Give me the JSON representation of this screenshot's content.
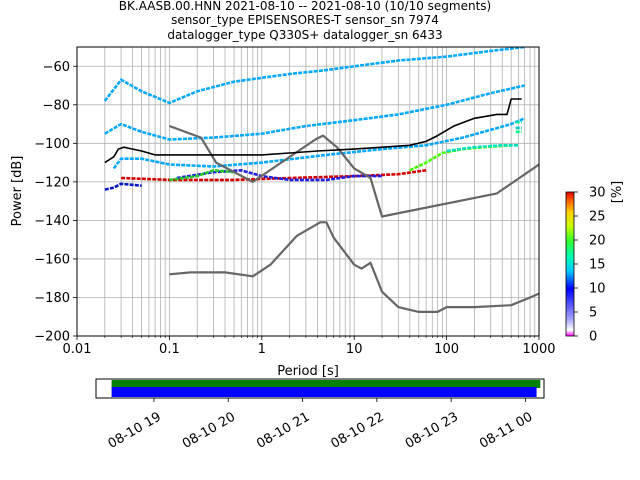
{
  "title_lines": [
    "BK.AASB.00.HNN   2021-08-10 -- 2021-08-10  (10/10 segments)",
    "sensor_type EPISENSORES-T sensor_sn 7974",
    "datalogger_type Q330S+ datalogger_sn 6433"
  ],
  "chart_data": {
    "type": "heatmap",
    "title": "BK.AASB.00.HNN   2021-08-10 -- 2021-08-10  (10/10 segments)",
    "xlabel": "Period [s]",
    "ylabel": "Power [dB]",
    "xscale": "log",
    "xlim": [
      0.01,
      1000
    ],
    "ylim": [
      -200,
      -50
    ],
    "x_ticks": [
      0.01,
      0.1,
      1,
      10,
      100,
      1000
    ],
    "x_tick_labels": [
      "0.01",
      "0.1",
      "1",
      "10",
      "100",
      "1000"
    ],
    "y_ticks": [
      -200,
      -180,
      -160,
      -140,
      -120,
      -100,
      -80,
      -60
    ],
    "y_tick_labels": [
      "−200",
      "−180",
      "−160",
      "−140",
      "−120",
      "−100",
      "−80",
      "−60"
    ],
    "grid": true,
    "colorbar": {
      "label": "[%]",
      "range": [
        0,
        30
      ],
      "ticks": [
        0,
        5,
        10,
        15,
        20,
        25,
        30
      ],
      "tick_labels": [
        "0",
        "5",
        "10",
        "15",
        "20",
        "25",
        "30"
      ]
    },
    "noise_models": [
      {
        "points": [
          [
            0.1,
            -91
          ],
          [
            0.22,
            -97
          ],
          [
            0.32,
            -110
          ],
          [
            0.8,
            -120
          ],
          [
            3.8,
            -98
          ],
          [
            4.6,
            -96
          ],
          [
            6.5,
            -102
          ],
          [
            10,
            -113
          ],
          [
            15,
            -118
          ],
          [
            20,
            -138
          ],
          [
            350,
            -126
          ],
          [
            1000,
            -111
          ]
        ]
      },
      {
        "points": [
          [
            0.1,
            -168
          ],
          [
            0.17,
            -167
          ],
          [
            0.4,
            -167
          ],
          [
            0.8,
            -169
          ],
          [
            1.24,
            -163
          ],
          [
            2.4,
            -148
          ],
          [
            4.3,
            -141
          ],
          [
            5,
            -141
          ],
          [
            6,
            -149
          ],
          [
            10,
            -163
          ],
          [
            12,
            -165
          ],
          [
            15,
            -162
          ],
          [
            20,
            -177
          ],
          [
            30,
            -185
          ],
          [
            50,
            -187.5
          ],
          [
            80,
            -187.5
          ],
          [
            100,
            -185
          ],
          [
            200,
            -185
          ],
          [
            500,
            -184
          ],
          [
            800,
            -180
          ],
          [
            1000,
            -178
          ]
        ]
      }
    ],
    "mode_line": {
      "points": [
        [
          0.02,
          -110
        ],
        [
          0.025,
          -107
        ],
        [
          0.028,
          -103
        ],
        [
          0.032,
          -102
        ],
        [
          0.05,
          -104
        ],
        [
          0.07,
          -106
        ],
        [
          0.1,
          -106
        ],
        [
          0.2,
          -106
        ],
        [
          0.4,
          -106
        ],
        [
          1,
          -106
        ],
        [
          2,
          -105
        ],
        [
          4,
          -104
        ],
        [
          10,
          -103
        ],
        [
          20,
          -102
        ],
        [
          40,
          -101
        ],
        [
          60,
          -99
        ],
        [
          80,
          -96
        ],
        [
          120,
          -91
        ],
        [
          200,
          -87
        ],
        [
          350,
          -85
        ],
        [
          450,
          -85
        ],
        [
          500,
          -77
        ],
        [
          650,
          -77
        ]
      ]
    },
    "psd_bands": [
      {
        "color": "#00a8ff",
        "points": [
          [
            0.02,
            -78
          ],
          [
            0.03,
            -67
          ],
          [
            0.05,
            -73
          ],
          [
            0.1,
            -79
          ],
          [
            0.2,
            -73
          ],
          [
            0.5,
            -68
          ],
          [
            1,
            -66
          ],
          [
            2,
            -64
          ],
          [
            5,
            -62
          ],
          [
            10,
            -60
          ],
          [
            30,
            -57
          ],
          [
            100,
            -55
          ],
          [
            300,
            -52
          ],
          [
            700,
            -50
          ]
        ]
      },
      {
        "color": "#00a8ff",
        "points": [
          [
            0.02,
            -95
          ],
          [
            0.03,
            -90
          ],
          [
            0.05,
            -94
          ],
          [
            0.1,
            -98
          ],
          [
            0.3,
            -97
          ],
          [
            1,
            -95
          ],
          [
            3,
            -91
          ],
          [
            10,
            -88
          ],
          [
            30,
            -85
          ],
          [
            100,
            -80
          ],
          [
            300,
            -74
          ],
          [
            700,
            -70
          ]
        ]
      },
      {
        "color": "#00a8ff",
        "points": [
          [
            0.025,
            -113
          ],
          [
            0.03,
            -108
          ],
          [
            0.05,
            -108
          ],
          [
            0.1,
            -111
          ],
          [
            0.3,
            -112
          ],
          [
            1,
            -110
          ],
          [
            5,
            -106
          ],
          [
            20,
            -103
          ],
          [
            60,
            -101
          ],
          [
            150,
            -97
          ],
          [
            500,
            -90
          ],
          [
            700,
            -87
          ]
        ]
      },
      {
        "color": "#0a18c8",
        "points": [
          [
            0.02,
            -124
          ],
          [
            0.025,
            -123
          ],
          [
            0.03,
            -121
          ],
          [
            0.05,
            -122
          ]
        ]
      },
      {
        "color": "#d00000",
        "points": [
          [
            0.03,
            -118
          ],
          [
            0.1,
            -119
          ],
          [
            0.5,
            -119
          ],
          [
            2,
            -118
          ],
          [
            10,
            -117
          ],
          [
            30,
            -116
          ],
          [
            60,
            -114
          ]
        ]
      },
      {
        "color": "#2020e0",
        "points": [
          [
            0.12,
            -118
          ],
          [
            0.3,
            -115
          ],
          [
            0.6,
            -114
          ],
          [
            1,
            -117
          ],
          [
            2,
            -119
          ],
          [
            5,
            -119
          ],
          [
            10,
            -117
          ],
          [
            20,
            -117
          ]
        ]
      },
      {
        "color": "#22cc22",
        "points": [
          [
            0.1,
            -119
          ],
          [
            0.2,
            -117
          ],
          [
            0.3,
            -114
          ],
          [
            0.5,
            -115
          ]
        ]
      },
      {
        "color": "#44ff00",
        "points": [
          [
            40,
            -114
          ],
          [
            60,
            -110
          ],
          [
            90,
            -105
          ],
          [
            150,
            -103
          ],
          [
            250,
            -102
          ],
          [
            500,
            -101
          ]
        ]
      },
      {
        "color": "#00e0c0",
        "points": [
          [
            100,
            -104
          ],
          [
            200,
            -102
          ],
          [
            400,
            -101
          ],
          [
            600,
            -101
          ]
        ]
      },
      {
        "color": "#00e0a0",
        "points": [
          [
            560,
            -89
          ],
          [
            650,
            -89
          ]
        ]
      },
      {
        "color": "#00c8c8",
        "points": [
          [
            560,
            -92
          ],
          [
            650,
            -92
          ]
        ]
      },
      {
        "color": "#00ff80",
        "points": [
          [
            560,
            -94
          ],
          [
            650,
            -94
          ]
        ]
      }
    ],
    "timeline": {
      "tick_labels": [
        "08-10 19",
        "08-10 20",
        "08-10 21",
        "08-10 22",
        "08-10 23",
        "08-11 00"
      ],
      "tick_hours": [
        19,
        20,
        21,
        22,
        23,
        24
      ],
      "xlim_hours": [
        18.22,
        24.25
      ],
      "bars": [
        {
          "color": "#008000",
          "start_hours": 18.43,
          "end_hours": 24.2
        },
        {
          "color": "#0000ff",
          "start_hours": 18.43,
          "end_hours": 24.15
        }
      ]
    }
  }
}
